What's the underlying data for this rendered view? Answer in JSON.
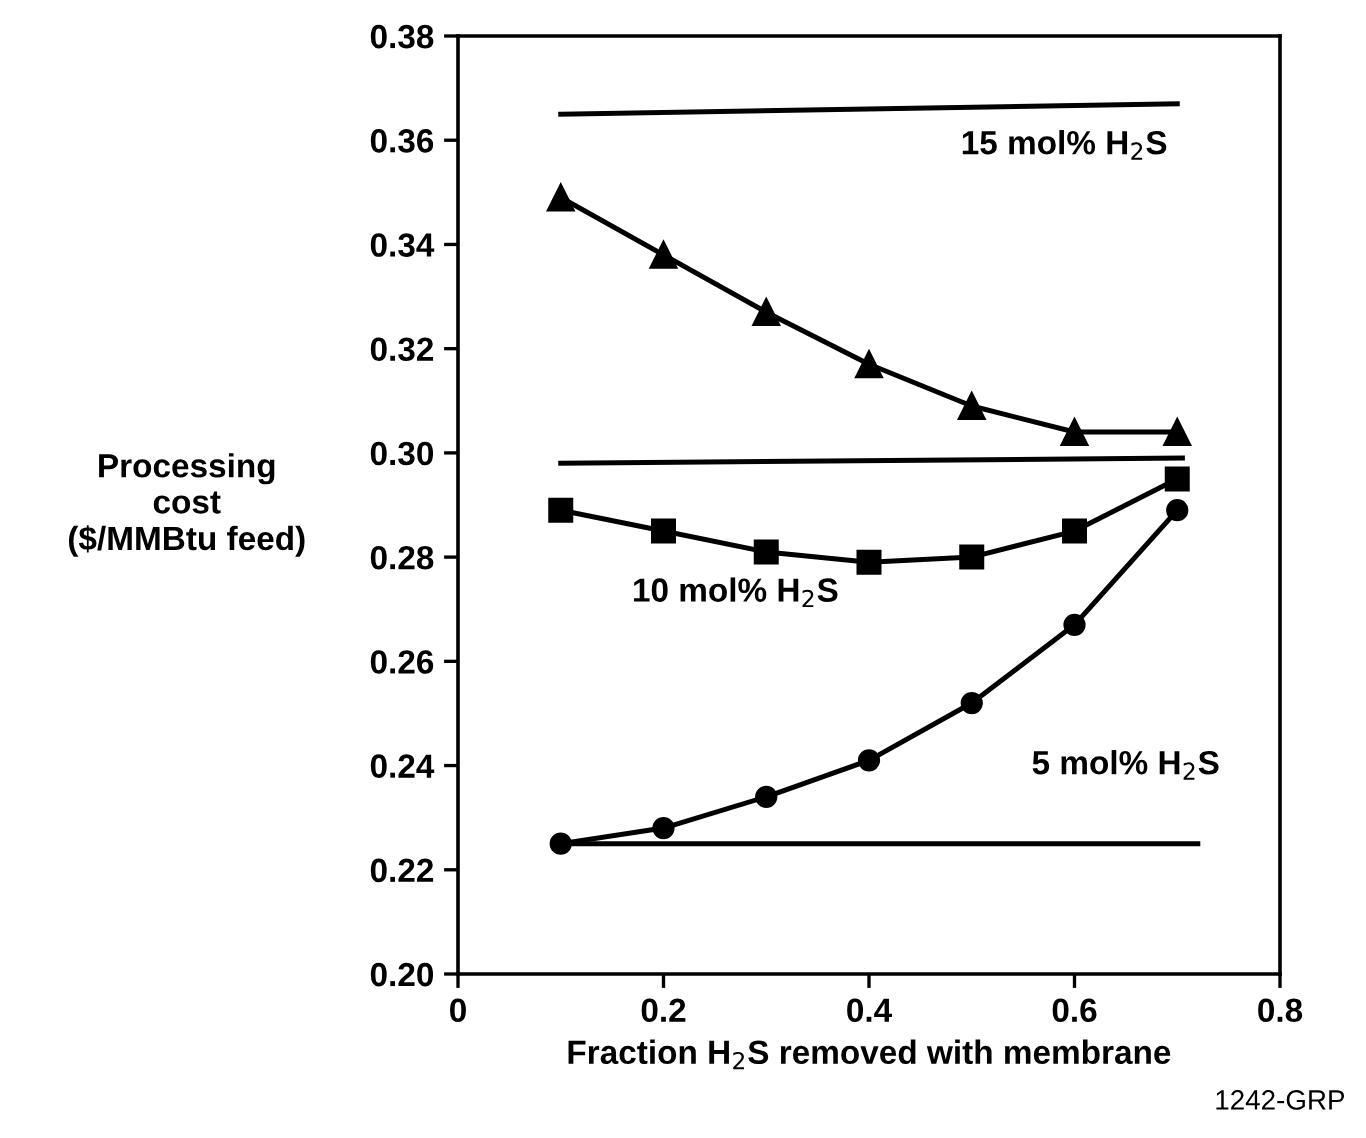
{
  "chart_data": {
    "type": "line",
    "xlabel": "Fraction H$_{2}$S removed with membrane",
    "ylabel": "Processing\ncost\n($/MMBtu feed)",
    "x": [
      0.1,
      0.2,
      0.3,
      0.4,
      0.5,
      0.6,
      0.7
    ],
    "series": [
      {
        "color": "#000000",
        "marker": "triangle",
        "values": [
          0.349,
          0.338,
          0.327,
          0.317,
          0.309,
          0.304,
          0.304
        ]
      },
      {
        "color": "#000000",
        "marker": "square",
        "values": [
          0.289,
          0.285,
          0.281,
          0.279,
          0.28,
          0.285,
          0.295
        ]
      },
      {
        "color": "#000000",
        "marker": "circle",
        "values": [
          0.225,
          0.228,
          0.234,
          0.241,
          0.252,
          0.267,
          0.289
        ]
      },
      {
        "color": "#000000",
        "marker": "none",
        "x": [
          0.1,
          0.7
        ],
        "values": [
          0.365,
          0.367
        ]
      },
      {
        "color": "#000000",
        "marker": "none",
        "x": [
          0.1,
          0.705
        ],
        "values": [
          0.298,
          0.299
        ]
      },
      {
        "color": "#000000",
        "marker": "none",
        "x": [
          0.1,
          0.72
        ],
        "values": [
          0.225,
          0.225
        ]
      }
    ],
    "xlim": [
      0,
      0.8
    ],
    "xticks": [
      0,
      0.2,
      0.4,
      0.6,
      0.8
    ],
    "ylim": [
      0.2,
      0.38
    ],
    "yticks": [
      {
        "value": 0.2,
        "label": "0.20"
      },
      0.22,
      0.24,
      0.26,
      0.28,
      {
        "value": 0.3,
        "label": "0.30"
      },
      0.32,
      0.34,
      0.36,
      0.38
    ],
    "grid": false,
    "legend": false,
    "annotations": [
      "15 mol% H$_{2}$S",
      "10 mol% H$_{2}$S",
      "5 mol% H$_{2}$S",
      "1242-GRP"
    ]
  }
}
